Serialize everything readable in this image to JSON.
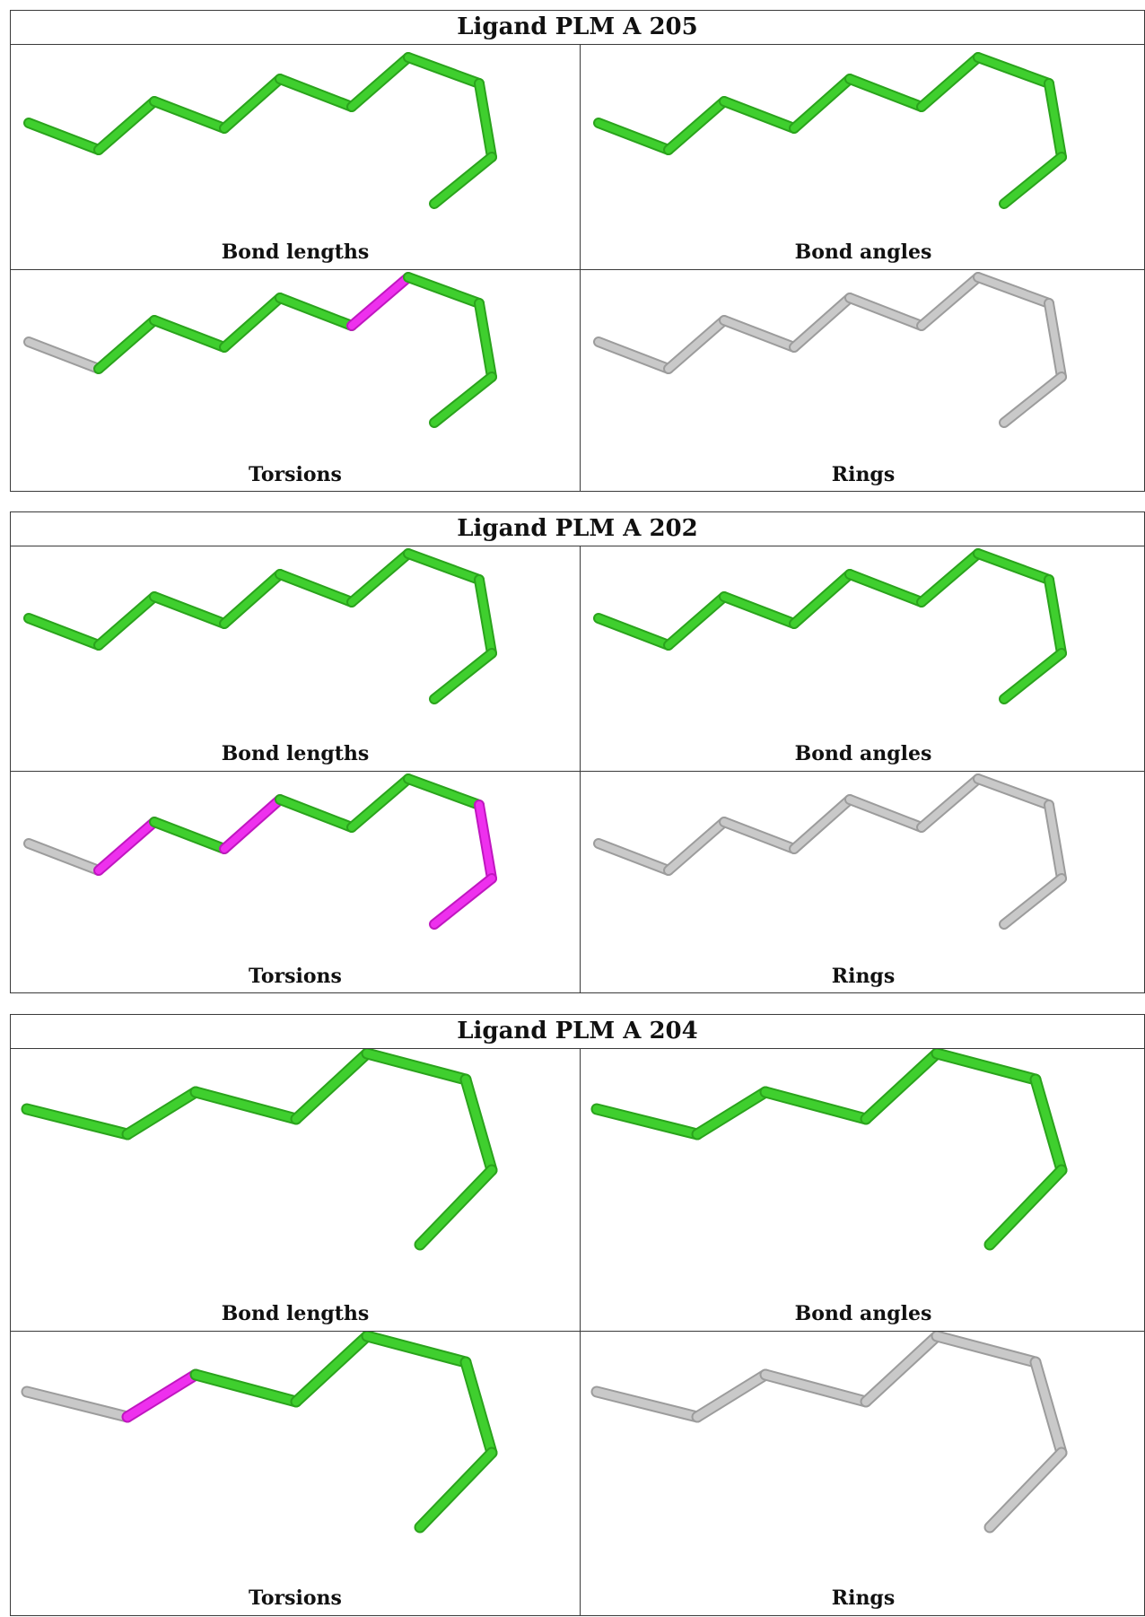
{
  "colors": {
    "ok": "#3fcf2e",
    "ok_edge": "#2aa31c",
    "outlier": "#ee30ee",
    "outlier_edge": "#c016c0",
    "neutral": "#c9c9c9",
    "neutral_edge": "#9c9c9c"
  },
  "panels": [
    {
      "title": "Ligand PLM A 205",
      "cells": [
        {
          "label": "Bond lengths",
          "bonds": [
            "ok",
            "ok",
            "ok",
            "ok",
            "ok",
            "ok",
            "ok",
            "ok",
            "ok",
            "ok",
            "ok"
          ]
        },
        {
          "label": "Bond angles",
          "bonds": [
            "ok",
            "ok",
            "ok",
            "ok",
            "ok",
            "ok",
            "ok",
            "ok",
            "ok",
            "ok",
            "ok"
          ]
        },
        {
          "label": "Torsions",
          "bonds": [
            "neutral",
            "ok",
            "ok",
            "ok",
            "ok",
            "outlier",
            "ok",
            "ok",
            "ok",
            "neutral"
          ]
        },
        {
          "label": "Rings",
          "bonds": [
            "neutral",
            "neutral",
            "neutral",
            "neutral",
            "neutral",
            "neutral",
            "neutral",
            "neutral",
            "neutral",
            "neutral"
          ]
        }
      ]
    },
    {
      "title": "Ligand PLM A 202",
      "cells": [
        {
          "label": "Bond lengths",
          "bonds": [
            "ok",
            "ok",
            "ok",
            "ok",
            "ok",
            "ok",
            "ok",
            "ok",
            "ok",
            "ok"
          ]
        },
        {
          "label": "Bond angles",
          "bonds": [
            "ok",
            "ok",
            "ok",
            "ok",
            "ok",
            "ok",
            "ok",
            "ok",
            "ok",
            "ok"
          ]
        },
        {
          "label": "Torsions",
          "bonds": [
            "neutral",
            "outlier",
            "ok",
            "outlier",
            "ok",
            "ok",
            "ok",
            "outlier",
            "outlier",
            "neutral"
          ]
        },
        {
          "label": "Rings",
          "bonds": [
            "neutral",
            "neutral",
            "neutral",
            "neutral",
            "neutral",
            "neutral",
            "neutral",
            "neutral",
            "neutral",
            "neutral"
          ]
        }
      ]
    },
    {
      "title": "Ligand PLM A 204",
      "cells": [
        {
          "label": "Bond lengths",
          "bonds": [
            "ok",
            "ok",
            "ok",
            "ok",
            "ok",
            "ok",
            "ok",
            "ok"
          ]
        },
        {
          "label": "Bond angles",
          "bonds": [
            "ok",
            "ok",
            "ok",
            "ok",
            "ok",
            "ok",
            "ok",
            "ok"
          ]
        },
        {
          "label": "Torsions",
          "bonds": [
            "neutral",
            "outlier",
            "ok",
            "ok",
            "ok",
            "ok",
            "ok",
            "neutral"
          ]
        },
        {
          "label": "Rings",
          "bonds": [
            "neutral",
            "neutral",
            "neutral",
            "neutral",
            "neutral",
            "neutral",
            "neutral",
            "neutral"
          ]
        }
      ]
    }
  ]
}
